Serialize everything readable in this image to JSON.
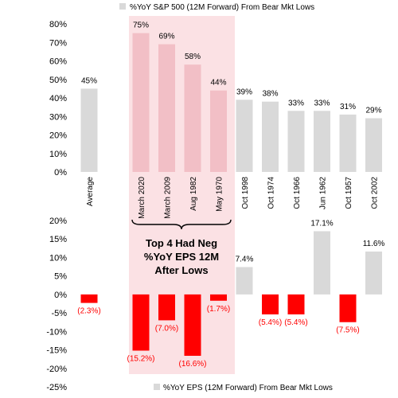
{
  "chart_data": [
    {
      "type": "bar",
      "title": "",
      "legend": {
        "label": "%YoY S&P 500 (12M Forward) From Bear Mkt Lows",
        "placement": "top"
      },
      "categories": [
        "Average",
        "",
        "March 2020",
        "March 2009",
        "Aug 1982",
        "May 1970",
        "Oct 1998",
        "Oct 1974",
        "Oct 1966",
        "Jun 1962",
        "Oct 1957",
        "Oct 2002"
      ],
      "values": [
        45,
        null,
        75,
        69,
        58,
        44,
        39,
        38,
        33,
        33,
        31,
        29
      ],
      "data_labels": [
        "45%",
        "",
        "75%",
        "69%",
        "58%",
        "44%",
        "39%",
        "38%",
        "33%",
        "33%",
        "31%",
        "29%"
      ],
      "ylim": [
        0,
        80
      ],
      "yticks": [
        "0%",
        "10%",
        "20%",
        "30%",
        "40%",
        "50%",
        "60%",
        "70%",
        "80%"
      ],
      "grid": false
    },
    {
      "type": "bar",
      "title": "",
      "legend": {
        "label": "%YoY EPS (12M Forward) From Bear Mkt Lows",
        "placement": "bottom"
      },
      "categories": [
        "Average",
        "",
        "March 2020",
        "March 2009",
        "Aug 1982",
        "May 1970",
        "Oct 1998",
        "Oct 1974",
        "Oct 1966",
        "Jun 1962",
        "Oct 1957",
        "Oct 2002"
      ],
      "values": [
        -2.3,
        null,
        -15.2,
        -7.0,
        -16.6,
        -1.7,
        7.4,
        -5.4,
        -5.4,
        17.1,
        -7.5,
        11.6
      ],
      "data_labels": [
        "(2.3%)",
        "",
        "(15.2%)",
        "(7.0%)",
        "(16.6%)",
        "(1.7%)",
        "7.4%",
        "(5.4%)",
        "(5.4%)",
        "17.1%",
        "(7.5%)",
        "11.6%"
      ],
      "ylim": [
        -25,
        20
      ],
      "yticks": [
        "-25%",
        "-20%",
        "-15%",
        "-10%",
        "-5%",
        "0%",
        "5%",
        "10%",
        "15%",
        "20%"
      ],
      "grid": false
    }
  ],
  "annotation": {
    "lines": [
      "Top 4 Had Neg",
      "%YoY EPS 12M",
      "After Lows"
    ]
  },
  "colors": {
    "gray_bar": "#d9d9d9",
    "pink_bar": "#f2bfc6",
    "highlight_bg": "#fbe1e4",
    "negative_bar": "#ff0000",
    "negative_label": "#ff0000",
    "text": "#000000"
  }
}
